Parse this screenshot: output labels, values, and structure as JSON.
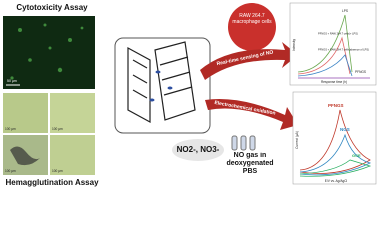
{
  "cytotoxicity": {
    "title": "Cytotoxicity Assay",
    "scale": "50 µm"
  },
  "hemagglutination": {
    "title": "Hemagglutination Assay",
    "panels": [
      "100 µm",
      "100 µm",
      "100 µm",
      "100 µm"
    ]
  },
  "cells": "RAW 264.7 macrophage cells",
  "arrows": {
    "sensing": "Real-time sensing of NO",
    "oxidation": "Electrochemical oxidation"
  },
  "products": "NO2-, NO3-",
  "gas": "NO gas in deoxygenated PBS",
  "sensing_chart": {
    "curves": [
      "LPS",
      "PFNGS + RAW 264.7 cells(+ LPS)",
      "PFNGS + RAW 264.7 cells(absence of LPS)",
      "PFNGS"
    ],
    "y_label": "Intensity",
    "x_label": "Response time (h)"
  },
  "cv_chart": {
    "curves": [
      "PFNGS",
      "NGS",
      "GCE"
    ],
    "y_label": "Current (µA)",
    "x_label": "E/V vs. Ag/AgCl"
  }
}
